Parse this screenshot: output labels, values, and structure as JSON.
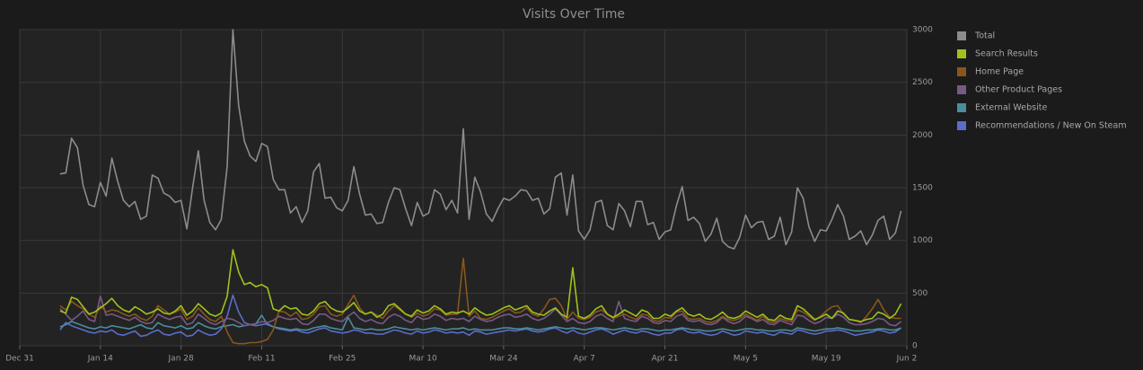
{
  "chart_data": {
    "type": "line",
    "title": "Visits Over Time",
    "legend": "right",
    "grid": true,
    "x": [
      "Jan 7",
      "Jan 8",
      "Jan 9",
      "Jan 10",
      "Jan 11",
      "Jan 12",
      "Jan 13",
      "Jan 14",
      "Jan 15",
      "Jan 16",
      "Jan 17",
      "Jan 18",
      "Jan 19",
      "Jan 20",
      "Jan 21",
      "Jan 22",
      "Jan 23",
      "Jan 24",
      "Jan 25",
      "Jan 26",
      "Jan 27",
      "Jan 28",
      "Jan 29",
      "Jan 30",
      "Jan 31",
      "Feb 1",
      "Feb 2",
      "Feb 3",
      "Feb 4",
      "Feb 5",
      "Feb 6",
      "Feb 7",
      "Feb 8",
      "Feb 9",
      "Feb 10",
      "Feb 11",
      "Feb 12",
      "Feb 13",
      "Feb 14",
      "Feb 15",
      "Feb 16",
      "Feb 17",
      "Feb 18",
      "Feb 19",
      "Feb 20",
      "Feb 21",
      "Feb 22",
      "Feb 23",
      "Feb 24",
      "Feb 25",
      "Feb 26",
      "Feb 27",
      "Feb 28",
      "Feb 29",
      "Mar 1",
      "Mar 2",
      "Mar 3",
      "Mar 4",
      "Mar 5",
      "Mar 6",
      "Mar 7",
      "Mar 8",
      "Mar 9",
      "Mar 10",
      "Mar 11",
      "Mar 12",
      "Mar 13",
      "Mar 14",
      "Mar 15",
      "Mar 16",
      "Mar 17",
      "Mar 18",
      "Mar 19",
      "Mar 20",
      "Mar 21",
      "Mar 22",
      "Mar 23",
      "Mar 24",
      "Mar 25",
      "Mar 26",
      "Mar 27",
      "Mar 28",
      "Mar 29",
      "Mar 30",
      "Mar 31",
      "Apr 1",
      "Apr 2",
      "Apr 3",
      "Apr 4",
      "Apr 5",
      "Apr 6",
      "Apr 7",
      "Apr 8",
      "Apr 9",
      "Apr 10",
      "Apr 11",
      "Apr 12",
      "Apr 13",
      "Apr 14",
      "Apr 15",
      "Apr 16",
      "Apr 17",
      "Apr 18",
      "Apr 19",
      "Apr 20",
      "Apr 21",
      "Apr 22",
      "Apr 23",
      "Apr 24",
      "Apr 25",
      "Apr 26",
      "Apr 27",
      "Apr 28",
      "Apr 29",
      "Apr 30",
      "May 1",
      "May 2",
      "May 3",
      "May 4",
      "May 5",
      "May 6",
      "May 7",
      "May 8",
      "May 9",
      "May 10",
      "May 11",
      "May 12",
      "May 13",
      "May 14",
      "May 15",
      "May 16",
      "May 17",
      "May 18",
      "May 19",
      "May 20",
      "May 21",
      "May 22",
      "May 23",
      "May 24",
      "May 25",
      "May 26",
      "May 27",
      "May 28",
      "May 29",
      "May 30",
      "May 31",
      "Jun 1"
    ],
    "xlim": [
      "Dec 31",
      "Jun 2"
    ],
    "xticks": [
      "Dec 31",
      "Jan 14",
      "Jan 28",
      "Feb 11",
      "Feb 25",
      "Mar 10",
      "Mar 24",
      "Apr 7",
      "Apr 21",
      "May 5",
      "May 19",
      "Jun 2"
    ],
    "ylim": [
      0,
      3000
    ],
    "yticks": [
      0,
      500,
      1000,
      1500,
      2000,
      2500,
      3000
    ],
    "series": [
      {
        "name": "Total",
        "color": "#8c8c8c",
        "values": [
          1630,
          1640,
          1970,
          1880,
          1520,
          1340,
          1320,
          1550,
          1420,
          1780,
          1560,
          1380,
          1320,
          1370,
          1200,
          1230,
          1620,
          1590,
          1450,
          1420,
          1360,
          1380,
          1110,
          1500,
          1850,
          1380,
          1170,
          1100,
          1200,
          1700,
          3000,
          2280,
          1940,
          1800,
          1750,
          1920,
          1890,
          1580,
          1480,
          1480,
          1260,
          1320,
          1170,
          1280,
          1650,
          1730,
          1400,
          1410,
          1310,
          1280,
          1380,
          1700,
          1440,
          1240,
          1250,
          1160,
          1170,
          1360,
          1500,
          1480,
          1300,
          1140,
          1360,
          1230,
          1260,
          1480,
          1440,
          1290,
          1380,
          1260,
          2060,
          1200,
          1600,
          1460,
          1250,
          1180,
          1300,
          1400,
          1380,
          1420,
          1480,
          1470,
          1380,
          1400,
          1250,
          1300,
          1600,
          1640,
          1240,
          1620,
          1090,
          1010,
          1100,
          1360,
          1380,
          1140,
          1100,
          1350,
          1280,
          1130,
          1370,
          1370,
          1150,
          1170,
          1010,
          1080,
          1100,
          1330,
          1510,
          1190,
          1220,
          1160,
          990,
          1060,
          1210,
          990,
          940,
          920,
          1030,
          1240,
          1120,
          1170,
          1180,
          1010,
          1040,
          1220,
          960,
          1080,
          1500,
          1400,
          1130,
          990,
          1100,
          1090,
          1200,
          1340,
          1230,
          1010,
          1040,
          1090,
          960,
          1050,
          1190,
          1230,
          1010,
          1070,
          1280
        ]
      },
      {
        "name": "Search Results",
        "color": "#9ec21c",
        "values": [
          330,
          310,
          460,
          440,
          370,
          300,
          320,
          360,
          400,
          450,
          380,
          340,
          320,
          370,
          340,
          300,
          320,
          350,
          310,
          300,
          330,
          380,
          290,
          330,
          400,
          350,
          300,
          280,
          310,
          470,
          910,
          700,
          580,
          600,
          560,
          580,
          550,
          350,
          330,
          380,
          350,
          360,
          300,
          290,
          330,
          400,
          420,
          360,
          330,
          320,
          360,
          410,
          330,
          300,
          320,
          270,
          300,
          380,
          400,
          350,
          300,
          280,
          340,
          310,
          330,
          380,
          350,
          300,
          320,
          310,
          330,
          300,
          360,
          320,
          290,
          300,
          330,
          360,
          380,
          340,
          360,
          380,
          320,
          300,
          290,
          330,
          360,
          300,
          270,
          740,
          280,
          260,
          290,
          350,
          380,
          300,
          270,
          300,
          340,
          310,
          280,
          340,
          320,
          260,
          260,
          300,
          280,
          330,
          360,
          300,
          280,
          300,
          260,
          250,
          280,
          320,
          270,
          260,
          280,
          330,
          300,
          270,
          300,
          250,
          240,
          290,
          260,
          250,
          380,
          350,
          300,
          250,
          270,
          300,
          260,
          330,
          310,
          250,
          240,
          230,
          250,
          260,
          320,
          300,
          260,
          300,
          400
        ]
      },
      {
        "name": "Home Page",
        "color": "#8a561c",
        "values": [
          380,
          340,
          420,
          380,
          350,
          300,
          270,
          380,
          320,
          340,
          330,
          300,
          280,
          300,
          260,
          240,
          280,
          380,
          340,
          300,
          320,
          350,
          250,
          280,
          360,
          300,
          250,
          230,
          280,
          130,
          30,
          20,
          20,
          30,
          30,
          40,
          60,
          150,
          330,
          320,
          280,
          320,
          250,
          260,
          300,
          370,
          380,
          300,
          280,
          300,
          390,
          480,
          360,
          300,
          320,
          290,
          260,
          330,
          380,
          340,
          300,
          270,
          310,
          280,
          300,
          350,
          340,
          290,
          300,
          300,
          830,
          280,
          330,
          260,
          250,
          270,
          300,
          330,
          350,
          310,
          320,
          360,
          300,
          280,
          350,
          440,
          450,
          380,
          250,
          320,
          260,
          250,
          270,
          320,
          340,
          300,
          260,
          280,
          300,
          270,
          250,
          300,
          290,
          240,
          230,
          270,
          260,
          320,
          330,
          260,
          250,
          260,
          230,
          220,
          240,
          280,
          250,
          240,
          260,
          300,
          270,
          240,
          280,
          230,
          220,
          260,
          240,
          230,
          340,
          320,
          280,
          240,
          280,
          330,
          370,
          380,
          300,
          250,
          240,
          220,
          280,
          350,
          440,
          340,
          270,
          260,
          260
        ]
      },
      {
        "name": "Other Product Pages",
        "color": "#765a86",
        "values": [
          350,
          300,
          240,
          280,
          330,
          250,
          230,
          470,
          290,
          300,
          280,
          260,
          240,
          270,
          230,
          210,
          220,
          300,
          270,
          250,
          270,
          280,
          200,
          220,
          300,
          260,
          220,
          200,
          230,
          260,
          250,
          220,
          190,
          200,
          210,
          230,
          220,
          240,
          280,
          260,
          250,
          260,
          210,
          200,
          240,
          300,
          300,
          260,
          240,
          230,
          280,
          320,
          260,
          230,
          250,
          220,
          210,
          270,
          300,
          280,
          240,
          220,
          280,
          250,
          260,
          300,
          280,
          240,
          260,
          250,
          260,
          230,
          280,
          250,
          230,
          240,
          270,
          290,
          300,
          270,
          280,
          300,
          260,
          240,
          260,
          300,
          350,
          290,
          230,
          260,
          220,
          210,
          230,
          280,
          300,
          260,
          230,
          420,
          260,
          240,
          230,
          280,
          260,
          220,
          210,
          240,
          230,
          280,
          300,
          240,
          230,
          240,
          210,
          200,
          220,
          270,
          230,
          210,
          230,
          280,
          260,
          230,
          250,
          210,
          200,
          240,
          220,
          200,
          290,
          280,
          240,
          210,
          230,
          270,
          260,
          300,
          270,
          220,
          200,
          200,
          210,
          230,
          260,
          250,
          200,
          190,
          230
        ]
      },
      {
        "name": "External Website",
        "color": "#4a8d9e",
        "values": [
          180,
          200,
          230,
          210,
          190,
          170,
          160,
          180,
          170,
          190,
          180,
          170,
          160,
          180,
          200,
          170,
          160,
          220,
          190,
          180,
          170,
          190,
          160,
          170,
          220,
          190,
          170,
          160,
          180,
          190,
          200,
          180,
          190,
          200,
          210,
          290,
          200,
          180,
          170,
          160,
          150,
          160,
          150,
          150,
          170,
          180,
          190,
          170,
          160,
          150,
          270,
          170,
          160,
          150,
          160,
          150,
          150,
          160,
          180,
          170,
          160,
          150,
          160,
          150,
          160,
          170,
          160,
          150,
          160,
          160,
          170,
          150,
          160,
          150,
          150,
          150,
          160,
          170,
          170,
          160,
          160,
          170,
          160,
          150,
          160,
          170,
          180,
          170,
          160,
          170,
          160,
          150,
          160,
          170,
          170,
          160,
          150,
          160,
          170,
          160,
          150,
          160,
          160,
          150,
          140,
          150,
          150,
          160,
          170,
          160,
          150,
          150,
          140,
          140,
          150,
          160,
          150,
          140,
          150,
          160,
          160,
          150,
          150,
          140,
          140,
          150,
          150,
          140,
          170,
          160,
          150,
          140,
          150,
          160,
          160,
          170,
          160,
          150,
          140,
          140,
          150,
          150,
          160,
          160,
          150,
          150,
          170
        ]
      },
      {
        "name": "Recommendations / New On Steam",
        "color": "#5b6ccb",
        "values": [
          150,
          220,
          190,
          170,
          150,
          130,
          120,
          140,
          130,
          150,
          110,
          100,
          120,
          140,
          90,
          100,
          130,
          150,
          110,
          100,
          120,
          130,
          90,
          100,
          150,
          120,
          100,
          110,
          160,
          280,
          480,
          320,
          220,
          200,
          190,
          200,
          210,
          180,
          160,
          150,
          140,
          150,
          130,
          120,
          140,
          160,
          170,
          140,
          130,
          120,
          130,
          150,
          140,
          120,
          120,
          110,
          110,
          130,
          150,
          140,
          120,
          110,
          140,
          120,
          130,
          150,
          140,
          120,
          130,
          120,
          130,
          100,
          140,
          130,
          110,
          120,
          130,
          140,
          150,
          140,
          150,
          160,
          140,
          130,
          140,
          160,
          170,
          140,
          120,
          150,
          120,
          110,
          130,
          150,
          160,
          140,
          110,
          130,
          150,
          130,
          120,
          140,
          130,
          110,
          100,
          120,
          120,
          150,
          160,
          130,
          120,
          130,
          110,
          100,
          110,
          140,
          120,
          100,
          110,
          140,
          130,
          120,
          130,
          110,
          100,
          130,
          120,
          110,
          150,
          140,
          120,
          110,
          120,
          140,
          140,
          150,
          140,
          120,
          100,
          110,
          120,
          130,
          150,
          140,
          120,
          130,
          170
        ]
      }
    ]
  }
}
